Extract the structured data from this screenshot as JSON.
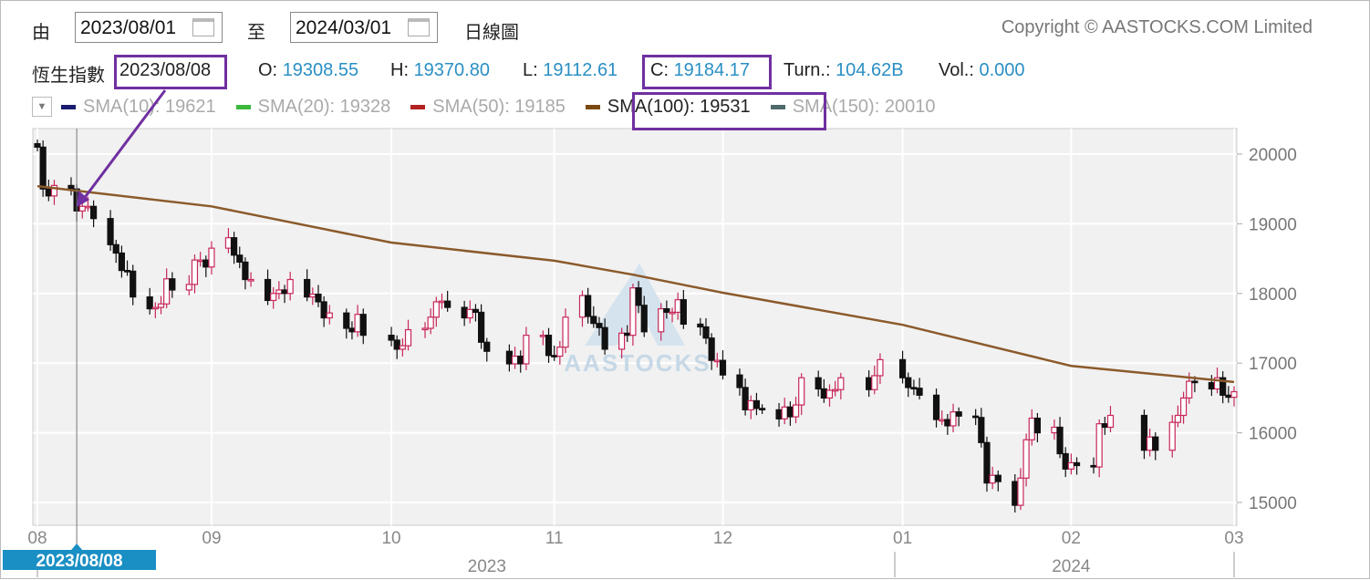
{
  "header": {
    "from_label": "由",
    "from_date": "2023/08/01",
    "to_label": "至",
    "to_date": "2024/03/01",
    "chart_type": "日線圖",
    "copyright": "Copyright © AASTOCKS.COM Limited"
  },
  "info": {
    "index_name": "恆生指數",
    "date": "2023/08/08",
    "o_label": "O:",
    "o": "19308.55",
    "h_label": "H:",
    "h": "19370.80",
    "l_label": "L:",
    "l": "19112.61",
    "c_label": "C:",
    "c": "19184.17",
    "turn_label": "Turn.:",
    "turn": "104.62B",
    "vol_label": "Vol.:",
    "vol": "0.000"
  },
  "legend": [
    {
      "label": "SMA(10): 19621",
      "color": "#1a1a6e",
      "active": false
    },
    {
      "label": "SMA(20): 19328",
      "color": "#3cb83c",
      "active": false
    },
    {
      "label": "SMA(50): 19185",
      "color": "#b22222",
      "active": false
    },
    {
      "label": "SMA(100): 19531",
      "color": "#7a4a10",
      "active": true
    },
    {
      "label": "SMA(150): 20010",
      "color": "#4f6a6a",
      "active": false
    }
  ],
  "colors": {
    "up": "#c8285a",
    "down": "#111111",
    "sma100": "#8b5a2b",
    "crosshair_tag": "#1a8fc4"
  },
  "crosshair_label": "2023/08/08",
  "watermark": "AASTOCKS",
  "chart_data": {
    "type": "candlestick",
    "y_ticks": [
      "20000",
      "19000",
      "18000",
      "17000",
      "16000",
      "15000"
    ],
    "ylim": [
      14800,
      20400
    ],
    "x_ticks": [
      {
        "label": "08",
        "date": "2023-08-01"
      },
      {
        "label": "09",
        "date": "2023-09-01"
      },
      {
        "label": "10",
        "date": "2023-10-03"
      },
      {
        "label": "11",
        "date": "2023-11-01"
      },
      {
        "label": "12",
        "date": "2023-12-01"
      },
      {
        "label": "01",
        "date": "2024-01-02"
      },
      {
        "label": "02",
        "date": "2024-02-01"
      },
      {
        "label": "03",
        "date": "2024-03-01"
      }
    ],
    "year_labels": [
      {
        "label": "2023",
        "date": "2023-10-20"
      },
      {
        "label": "2024",
        "date": "2024-02-01"
      }
    ],
    "closes": [
      [
        "2023-08-01",
        20100
      ],
      [
        "2023-08-02",
        19500
      ],
      [
        "2023-08-03",
        19400
      ],
      [
        "2023-08-04",
        19550
      ],
      [
        "2023-08-07",
        19500
      ],
      [
        "2023-08-08",
        19184
      ],
      [
        "2023-08-09",
        19250
      ],
      [
        "2023-08-10",
        19250
      ],
      [
        "2023-08-11",
        19075
      ],
      [
        "2023-08-14",
        18700
      ],
      [
        "2023-08-15",
        18580
      ],
      [
        "2023-08-16",
        18330
      ],
      [
        "2023-08-17",
        18320
      ],
      [
        "2023-08-18",
        17950
      ],
      [
        "2023-08-21",
        17780
      ],
      [
        "2023-08-22",
        17800
      ],
      [
        "2023-08-23",
        17850
      ],
      [
        "2023-08-24",
        18210
      ],
      [
        "2023-08-25",
        18050
      ],
      [
        "2023-08-28",
        18130
      ],
      [
        "2023-08-29",
        18480
      ],
      [
        "2023-08-30",
        18480
      ],
      [
        "2023-08-31",
        18380
      ],
      [
        "2023-09-01",
        18650
      ],
      [
        "2023-09-04",
        18800
      ],
      [
        "2023-09-05",
        18550
      ],
      [
        "2023-09-06",
        18450
      ],
      [
        "2023-09-07",
        18200
      ],
      [
        "2023-09-08",
        18200
      ],
      [
        "2023-09-11",
        17900
      ],
      [
        "2023-09-12",
        18000
      ],
      [
        "2023-09-13",
        18050
      ],
      [
        "2023-09-14",
        18000
      ],
      [
        "2023-09-15",
        18200
      ],
      [
        "2023-09-18",
        17950
      ],
      [
        "2023-09-19",
        17990
      ],
      [
        "2023-09-20",
        17880
      ],
      [
        "2023-09-21",
        17650
      ],
      [
        "2023-09-22",
        17720
      ],
      [
        "2023-09-25",
        17500
      ],
      [
        "2023-09-26",
        17450
      ],
      [
        "2023-09-27",
        17700
      ],
      [
        "2023-09-28",
        17400
      ],
      [
        "2023-10-03",
        17330
      ],
      [
        "2023-10-04",
        17200
      ],
      [
        "2023-10-05",
        17250
      ],
      [
        "2023-10-06",
        17480
      ],
      [
        "2023-10-09",
        17500
      ],
      [
        "2023-10-10",
        17660
      ],
      [
        "2023-10-11",
        17880
      ],
      [
        "2023-10-12",
        17890
      ],
      [
        "2023-10-13",
        17800
      ],
      [
        "2023-10-16",
        17650
      ],
      [
        "2023-10-17",
        17770
      ],
      [
        "2023-10-18",
        17730
      ],
      [
        "2023-10-19",
        17300
      ],
      [
        "2023-10-20",
        17170
      ],
      [
        "2023-10-24",
        16990
      ],
      [
        "2023-10-25",
        17100
      ],
      [
        "2023-10-26",
        16990
      ],
      [
        "2023-10-27",
        17400
      ],
      [
        "2023-10-30",
        17400
      ],
      [
        "2023-10-31",
        17110
      ],
      [
        "2023-11-01",
        17100
      ],
      [
        "2023-11-02",
        17230
      ],
      [
        "2023-11-03",
        17660
      ],
      [
        "2023-11-06",
        17970
      ],
      [
        "2023-11-07",
        17670
      ],
      [
        "2023-11-08",
        17570
      ],
      [
        "2023-11-09",
        17510
      ],
      [
        "2023-11-10",
        17200
      ],
      [
        "2023-11-13",
        17430
      ],
      [
        "2023-11-14",
        17400
      ],
      [
        "2023-11-15",
        18080
      ],
      [
        "2023-11-16",
        17830
      ],
      [
        "2023-11-17",
        17450
      ],
      [
        "2023-11-20",
        17780
      ],
      [
        "2023-11-21",
        17730
      ],
      [
        "2023-11-22",
        17730
      ],
      [
        "2023-11-23",
        17910
      ],
      [
        "2023-11-24",
        17560
      ],
      [
        "2023-11-27",
        17520
      ],
      [
        "2023-11-28",
        17360
      ],
      [
        "2023-11-29",
        17040
      ],
      [
        "2023-11-30",
        17040
      ],
      [
        "2023-12-01",
        16830
      ],
      [
        "2023-12-04",
        16650
      ],
      [
        "2023-12-05",
        16330
      ],
      [
        "2023-12-06",
        16460
      ],
      [
        "2023-12-07",
        16350
      ],
      [
        "2023-12-08",
        16330
      ],
      [
        "2023-12-11",
        16200
      ],
      [
        "2023-12-12",
        16370
      ],
      [
        "2023-12-13",
        16230
      ],
      [
        "2023-12-14",
        16400
      ],
      [
        "2023-12-15",
        16790
      ],
      [
        "2023-12-18",
        16630
      ],
      [
        "2023-12-19",
        16500
      ],
      [
        "2023-12-20",
        16610
      ],
      [
        "2023-12-21",
        16620
      ],
      [
        "2023-12-22",
        16790
      ],
      [
        "2023-12-27",
        16620
      ],
      [
        "2023-12-28",
        16820
      ],
      [
        "2023-12-29",
        17050
      ],
      [
        "2024-01-02",
        16790
      ],
      [
        "2024-01-03",
        16650
      ],
      [
        "2024-01-04",
        16640
      ],
      [
        "2024-01-05",
        16540
      ],
      [
        "2024-01-08",
        16190
      ],
      [
        "2024-01-09",
        16190
      ],
      [
        "2024-01-10",
        16100
      ],
      [
        "2024-01-11",
        16300
      ],
      [
        "2024-01-12",
        16240
      ],
      [
        "2024-01-15",
        16220
      ],
      [
        "2024-01-16",
        15860
      ],
      [
        "2024-01-17",
        15280
      ],
      [
        "2024-01-18",
        15390
      ],
      [
        "2024-01-19",
        15300
      ],
      [
        "2024-01-22",
        14960
      ],
      [
        "2024-01-23",
        15350
      ],
      [
        "2024-01-24",
        15900
      ],
      [
        "2024-01-25",
        16210
      ],
      [
        "2024-01-26",
        16000
      ],
      [
        "2024-01-29",
        16080
      ],
      [
        "2024-01-30",
        15700
      ],
      [
        "2024-01-31",
        15480
      ],
      [
        "2024-02-01",
        15570
      ],
      [
        "2024-02-02",
        15530
      ],
      [
        "2024-02-05",
        15510
      ],
      [
        "2024-02-06",
        16130
      ],
      [
        "2024-02-07",
        16080
      ],
      [
        "2024-02-08",
        16250
      ],
      [
        "2024-02-14",
        15750
      ],
      [
        "2024-02-15",
        15940
      ],
      [
        "2024-02-16",
        15750
      ],
      [
        "2024-02-19",
        16150
      ],
      [
        "2024-02-20",
        16250
      ],
      [
        "2024-02-21",
        16500
      ],
      [
        "2024-02-22",
        16740
      ],
      [
        "2024-02-23",
        16720
      ],
      [
        "2024-02-26",
        16630
      ],
      [
        "2024-02-27",
        16790
      ],
      [
        "2024-02-28",
        16540
      ],
      [
        "2024-02-29",
        16510
      ],
      [
        "2024-03-01",
        16590
      ]
    ],
    "sma100": [
      [
        "2023-08-01",
        19540
      ],
      [
        "2023-09-01",
        19250
      ],
      [
        "2023-10-03",
        18730
      ],
      [
        "2023-11-01",
        18470
      ],
      [
        "2023-11-15",
        18270
      ],
      [
        "2023-12-01",
        18010
      ],
      [
        "2024-01-02",
        17550
      ],
      [
        "2024-02-01",
        16960
      ],
      [
        "2024-03-01",
        16730
      ]
    ]
  }
}
